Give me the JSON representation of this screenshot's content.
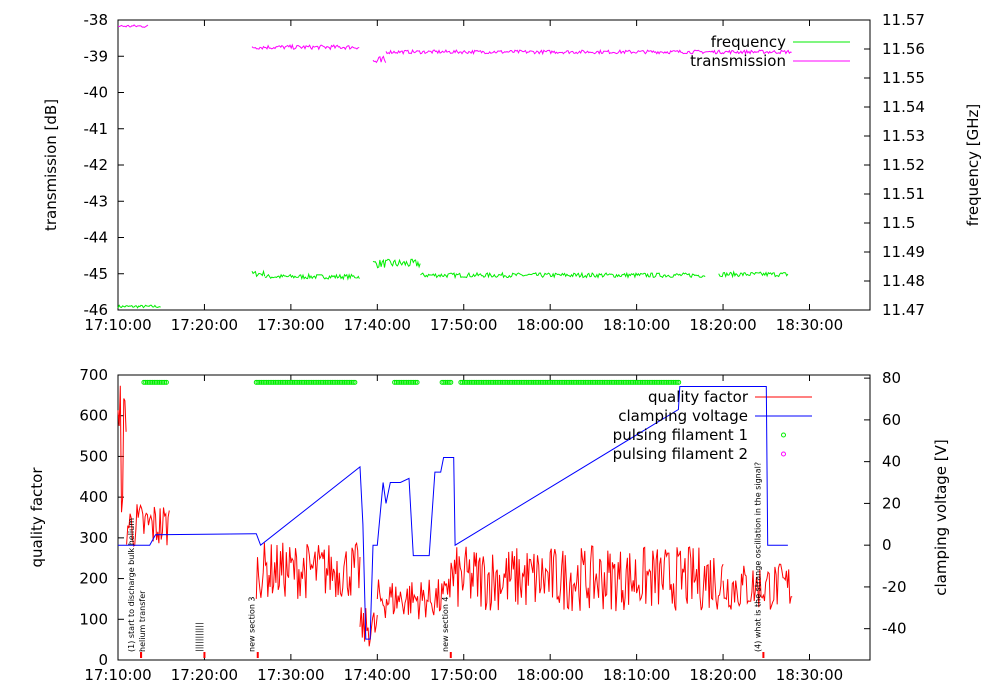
{
  "chart_data": [
    {
      "type": "line",
      "xlabel": "",
      "ylabel": "transmission [dB]",
      "y2label": "frequency [GHz]",
      "xlim": [
        "17:10:00",
        "18:37:00"
      ],
      "ylim": [
        -46,
        -38
      ],
      "y2lim": [
        11.47,
        11.57
      ],
      "xticks": [
        "17:10:00",
        "17:20:00",
        "17:30:00",
        "17:40:00",
        "17:50:00",
        "18:00:00",
        "18:10:00",
        "18:20:00",
        "18:30:00"
      ],
      "yticks": [
        "-38",
        "-39",
        "-40",
        "-41",
        "-42",
        "-43",
        "-44",
        "-45",
        "-46"
      ],
      "y2ticks": [
        "11.57",
        "11.56",
        "11.55",
        "11.54",
        "11.53",
        "11.52",
        "11.51",
        "11.5",
        "11.49",
        "11.48",
        "11.47"
      ],
      "legend_position": "top-right",
      "series": [
        {
          "name": "frequency",
          "axis": "y2",
          "color": "#00ee00",
          "segments": [
            {
              "start": "17:10:00",
              "end": "17:15:00",
              "mean": 11.4712,
              "noise": 0.0005
            },
            {
              "start": "17:25:30",
              "end": "17:27:00",
              "mean": 11.4825,
              "noise": 0.001
            },
            {
              "start": "17:27:00",
              "end": "17:38:00",
              "mean": 11.4815,
              "noise": 0.0008
            },
            {
              "start": "17:39:30",
              "end": "17:45:00",
              "mean": 11.486,
              "noise": 0.0015
            },
            {
              "start": "17:45:00",
              "end": "18:18:00",
              "mean": 11.482,
              "noise": 0.0008
            },
            {
              "start": "18:19:30",
              "end": "18:27:30",
              "mean": 11.4823,
              "noise": 0.0008
            }
          ]
        },
        {
          "name": "transmission",
          "axis": "y",
          "color": "#ff00ff",
          "segments": [
            {
              "start": "17:10:00",
              "end": "17:13:30",
              "mean": -38.17,
              "noise": 0.04
            },
            {
              "start": "17:25:30",
              "end": "17:38:00",
              "mean": -38.75,
              "noise": 0.06
            },
            {
              "start": "17:39:30",
              "end": "17:41:00",
              "mean": -39.15,
              "noise": 0.15
            },
            {
              "start": "17:41:00",
              "end": "18:28:00",
              "mean": -38.88,
              "noise": 0.05
            }
          ]
        }
      ]
    },
    {
      "type": "line",
      "xlabel": "",
      "ylabel": "quality factor",
      "y2label": "clamping voltage [V]",
      "xlim": [
        "17:10:00",
        "18:37:00"
      ],
      "ylim": [
        0,
        700
      ],
      "y2lim": [
        -55,
        81.5
      ],
      "xticks": [
        "17:10:00",
        "17:20:00",
        "17:30:00",
        "17:40:00",
        "17:50:00",
        "18:00:00",
        "18:10:00",
        "18:20:00",
        "18:30:00"
      ],
      "yticks": [
        "700",
        "600",
        "500",
        "400",
        "300",
        "200",
        "100",
        "0"
      ],
      "y2ticks": [
        "80",
        "60",
        "40",
        "20",
        "0",
        "-20",
        "-40"
      ],
      "legend_position": "top-right",
      "series": [
        {
          "name": "quality factor",
          "axis": "y",
          "color": "#ff0000",
          "segments": [
            {
              "start": "17:10:00",
              "end": "17:11:00",
              "mean": 520,
              "noise": 170
            },
            {
              "start": "17:11:00",
              "end": "17:16:00",
              "mean": 330,
              "noise": 60
            },
            {
              "start": "17:26:00",
              "end": "17:38:00",
              "mean": 220,
              "noise": 70
            },
            {
              "start": "17:38:00",
              "end": "17:40:00",
              "mean": 80,
              "noise": 50
            },
            {
              "start": "17:40:00",
              "end": "17:48:00",
              "mean": 150,
              "noise": 50
            },
            {
              "start": "17:48:00",
              "end": "18:20:00",
              "mean": 200,
              "noise": 80
            },
            {
              "start": "18:20:00",
              "end": "18:28:00",
              "mean": 180,
              "noise": 60
            }
          ]
        },
        {
          "name": "clamping voltage",
          "axis": "y2",
          "color": "#0000ff",
          "points": [
            [
              "17:10:00",
              0
            ],
            [
              "17:13:40",
              0
            ],
            [
              "17:14:20",
              5
            ],
            [
              "17:26:00",
              5.5
            ],
            [
              "17:26:30",
              0
            ],
            [
              "17:38:00",
              37.5
            ],
            [
              "17:38:20",
              10
            ],
            [
              "17:38:40",
              -45
            ],
            [
              "17:39:10",
              -45
            ],
            [
              "17:39:30",
              0
            ],
            [
              "17:40:00",
              0
            ],
            [
              "17:40:40",
              30
            ],
            [
              "17:41:00",
              20
            ],
            [
              "17:41:30",
              30
            ],
            [
              "17:42:40",
              30
            ],
            [
              "17:43:40",
              32
            ],
            [
              "17:44:10",
              -5
            ],
            [
              "17:46:00",
              -5
            ],
            [
              "17:46:40",
              35
            ],
            [
              "17:47:20",
              35
            ],
            [
              "17:47:40",
              42
            ],
            [
              "17:48:50",
              42
            ],
            [
              "17:49:00",
              0
            ],
            [
              "18:14:50",
              65
            ],
            [
              "18:15:00",
              76
            ],
            [
              "18:25:00",
              76
            ],
            [
              "18:25:10",
              0
            ],
            [
              "18:27:30",
              0
            ]
          ]
        },
        {
          "name": "pulsing filament 1",
          "axis": "y",
          "color": "#00ee00",
          "style": "points",
          "ranges": [
            [
              "17:13:00",
              "17:15:40"
            ],
            [
              "17:26:00",
              "17:37:30"
            ],
            [
              "17:42:00",
              "17:44:40"
            ],
            [
              "17:47:30",
              "17:48:40"
            ],
            [
              "17:49:40",
              "18:15:00"
            ]
          ],
          "value": 682
        },
        {
          "name": "pulsing filament 2",
          "axis": "y",
          "color": "#ff00ff",
          "style": "points",
          "ranges": [],
          "value": 0
        }
      ],
      "annotations": [
        {
          "time": "17:12:40",
          "text": "(1) start to discharge bulk helium"
        },
        {
          "time": "17:12:40",
          "text": "helium transfer"
        },
        {
          "time": "17:20:00",
          "text": "|||||||||||"
        },
        {
          "time": "17:26:10",
          "text": "new section 3"
        },
        {
          "time": "17:48:30",
          "text": "new section 4"
        },
        {
          "time": "18:24:40",
          "text": "(4) what is the strange oscillation in the signal?"
        }
      ]
    }
  ]
}
